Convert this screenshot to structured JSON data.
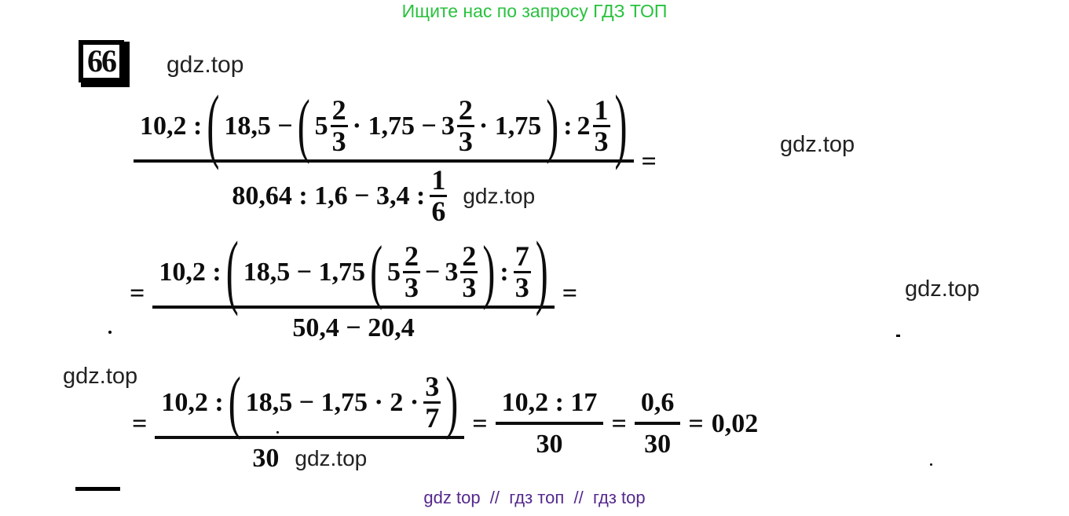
{
  "header": {
    "text": "Ищите нас по запросу ГДЗ ТОП"
  },
  "problem": {
    "number": "66"
  },
  "watermarks": {
    "top": "gdz.top",
    "right_upper": "gdz.top",
    "right_lower": "gdz.top",
    "left": "gdz.top"
  },
  "footer": {
    "text": "gdz top  //  гдз топ  //  гдз top"
  },
  "colors": {
    "header_green": "#28c23e",
    "footer_purple": "#55288c",
    "ink_black": "#0d0d0d",
    "watermark_gray": "#222222"
  },
  "math": {
    "result": "0,02",
    "lines": [
      {
        "tokens": [
          {
            "t": "frac",
            "num": [
              {
                "t": "txt",
                "v": "10,2 :"
              },
              {
                "t": "par",
                "v": "(",
                "sy": 2.2
              },
              {
                "t": "txt",
                "v": "18,5 −"
              },
              {
                "t": "par",
                "v": "(",
                "sy": 1.9
              },
              {
                "t": "mixed",
                "w": "5",
                "n": "2",
                "d": "3"
              },
              {
                "t": "txt",
                "v": "· 1,75 −"
              },
              {
                "t": "mixed",
                "w": "3",
                "n": "2",
                "d": "3"
              },
              {
                "t": "txt",
                "v": "· 1,75"
              },
              {
                "t": "par",
                "v": ")",
                "sy": 1.9
              },
              {
                "t": "txt",
                "v": ":"
              },
              {
                "t": "mixed",
                "w": "2",
                "n": "1",
                "d": "3"
              },
              {
                "t": "par",
                "v": ")",
                "sy": 2.2
              }
            ],
            "den": [
              {
                "t": "txt",
                "v": "80,64 : 1,6 − 3,4 :"
              },
              {
                "t": "sfrac",
                "n": "1",
                "d": "6"
              },
              {
                "t": "wm",
                "v": "gdz.top"
              }
            ]
          },
          {
            "t": "txt",
            "v": "="
          }
        ]
      },
      {
        "tokens": [
          {
            "t": "txt",
            "v": "="
          },
          {
            "t": "frac",
            "num": [
              {
                "t": "txt",
                "v": "10,2 :"
              },
              {
                "t": "par",
                "v": "(",
                "sy": 2.2
              },
              {
                "t": "txt",
                "v": "18,5 − 1,75"
              },
              {
                "t": "par",
                "v": "(",
                "sy": 1.9
              },
              {
                "t": "mixed",
                "w": "5",
                "n": "2",
                "d": "3"
              },
              {
                "t": "txt",
                "v": "−"
              },
              {
                "t": "mixed",
                "w": "3",
                "n": "2",
                "d": "3"
              },
              {
                "t": "par",
                "v": ")",
                "sy": 1.9
              },
              {
                "t": "txt",
                "v": ":"
              },
              {
                "t": "sfrac",
                "n": "7",
                "d": "3"
              },
              {
                "t": "par",
                "v": ")",
                "sy": 2.2
              }
            ],
            "den": [
              {
                "t": "txt",
                "v": "50,4 − 20,4"
              }
            ]
          },
          {
            "t": "txt",
            "v": "="
          }
        ]
      },
      {
        "tokens": [
          {
            "t": "txt",
            "v": "="
          },
          {
            "t": "frac",
            "num": [
              {
                "t": "txt",
                "v": "10,2 :"
              },
              {
                "t": "par",
                "v": "(",
                "sy": 1.85
              },
              {
                "t": "txt",
                "v": "18,5 − 1,75 · 2 ·"
              },
              {
                "t": "sfrac",
                "n": "3",
                "d": "7"
              },
              {
                "t": "par",
                "v": ")",
                "sy": 1.85
              }
            ],
            "den": [
              {
                "t": "txt",
                "v": "30"
              },
              {
                "t": "wm",
                "v": "gdz.top"
              }
            ]
          },
          {
            "t": "txt",
            "v": "="
          },
          {
            "t": "frac",
            "num": [
              {
                "t": "txt",
                "v": "10,2 : 17"
              }
            ],
            "den": [
              {
                "t": "txt",
                "v": "30"
              }
            ]
          },
          {
            "t": "txt",
            "v": "="
          },
          {
            "t": "frac",
            "num": [
              {
                "t": "txt",
                "v": "0,6"
              }
            ],
            "den": [
              {
                "t": "txt",
                "v": "30"
              }
            ]
          },
          {
            "t": "txt",
            "v": "="
          },
          {
            "t": "txt",
            "v": "0,02"
          }
        ]
      }
    ]
  }
}
